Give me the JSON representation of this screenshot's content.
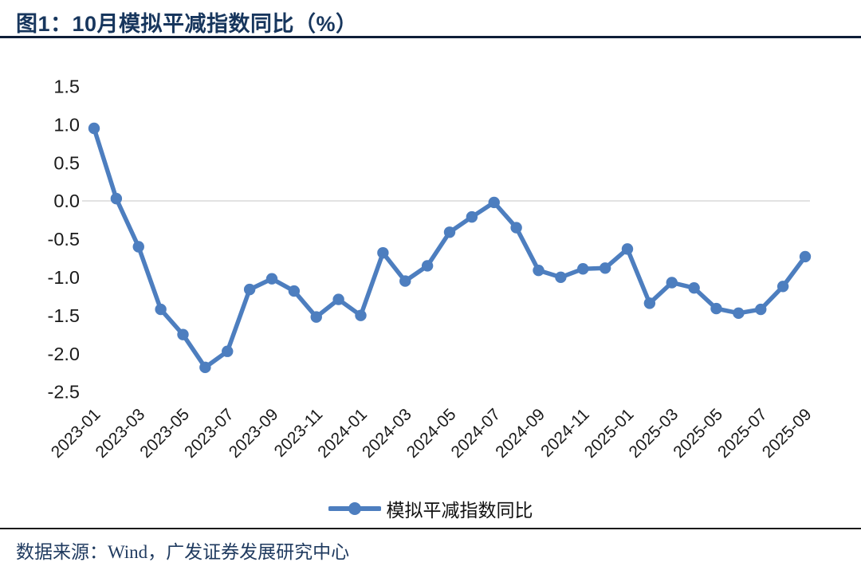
{
  "header": {
    "figure_label": "图1：10月模拟平减指数同比（%）"
  },
  "chart_data": {
    "type": "line",
    "title": "10月模拟平减指数同比（%）",
    "xlabel": "",
    "ylabel": "",
    "categories": [
      "2023-01",
      "2023-02",
      "2023-03",
      "2023-04",
      "2023-05",
      "2023-06",
      "2023-07",
      "2023-08",
      "2023-09",
      "2023-10",
      "2023-11",
      "2023-12",
      "2024-01",
      "2024-02",
      "2024-03",
      "2024-04",
      "2024-05",
      "2024-06",
      "2024-07",
      "2024-08",
      "2024-09",
      "2024-10",
      "2024-11",
      "2024-12",
      "2025-01",
      "2025-02",
      "2025-03",
      "2025-04",
      "2025-05",
      "2025-06",
      "2025-07",
      "2025-08",
      "2025-09"
    ],
    "series": [
      {
        "name": "模拟平减指数同比",
        "values": [
          0.95,
          0.03,
          -0.6,
          -1.42,
          -1.75,
          -2.18,
          -1.97,
          -1.16,
          -1.02,
          -1.18,
          -1.52,
          -1.29,
          -1.5,
          -0.68,
          -1.05,
          -0.85,
          -0.41,
          -0.21,
          -0.02,
          -0.35,
          -0.91,
          -1.0,
          -0.89,
          -0.88,
          -0.63,
          -1.34,
          -1.07,
          -1.14,
          -1.41,
          -1.47,
          -1.42,
          -1.12,
          -0.73
        ]
      }
    ],
    "x_tick_labels": [
      "2023-01",
      "2023-03",
      "2023-05",
      "2023-07",
      "2023-09",
      "2023-11",
      "2024-01",
      "2024-03",
      "2024-05",
      "2024-07",
      "2024-09",
      "2024-11",
      "2025-01",
      "2025-03",
      "2025-05",
      "2025-07",
      "2025-09"
    ],
    "y_tick_labels": [
      "1.5",
      "1.0",
      "0.5",
      "0.0",
      "-0.5",
      "-1.0",
      "-1.5",
      "-2.0",
      "-2.5"
    ],
    "y_ticks": [
      1.5,
      1.0,
      0.5,
      0.0,
      -0.5,
      -1.0,
      -1.5,
      -2.0,
      -2.5
    ],
    "ylim": [
      -2.5,
      1.5
    ],
    "grid": "horizontal gridline at 0 only",
    "legend_position": "bottom-center",
    "marker": "circle"
  },
  "legend": {
    "label": "模拟平减指数同比"
  },
  "footer": {
    "source": "数据来源：Wind，广发证券发展研究中心"
  },
  "colors": {
    "series_line": "#4d7ebf",
    "title_text": "#17365d",
    "title_rule": "#0e1e38",
    "zero_gridline": "#d9d9d9",
    "axis_text": "#1a1a1a",
    "footer_text": "#1f3a5f",
    "footer_rule": "#1a1a1a"
  }
}
